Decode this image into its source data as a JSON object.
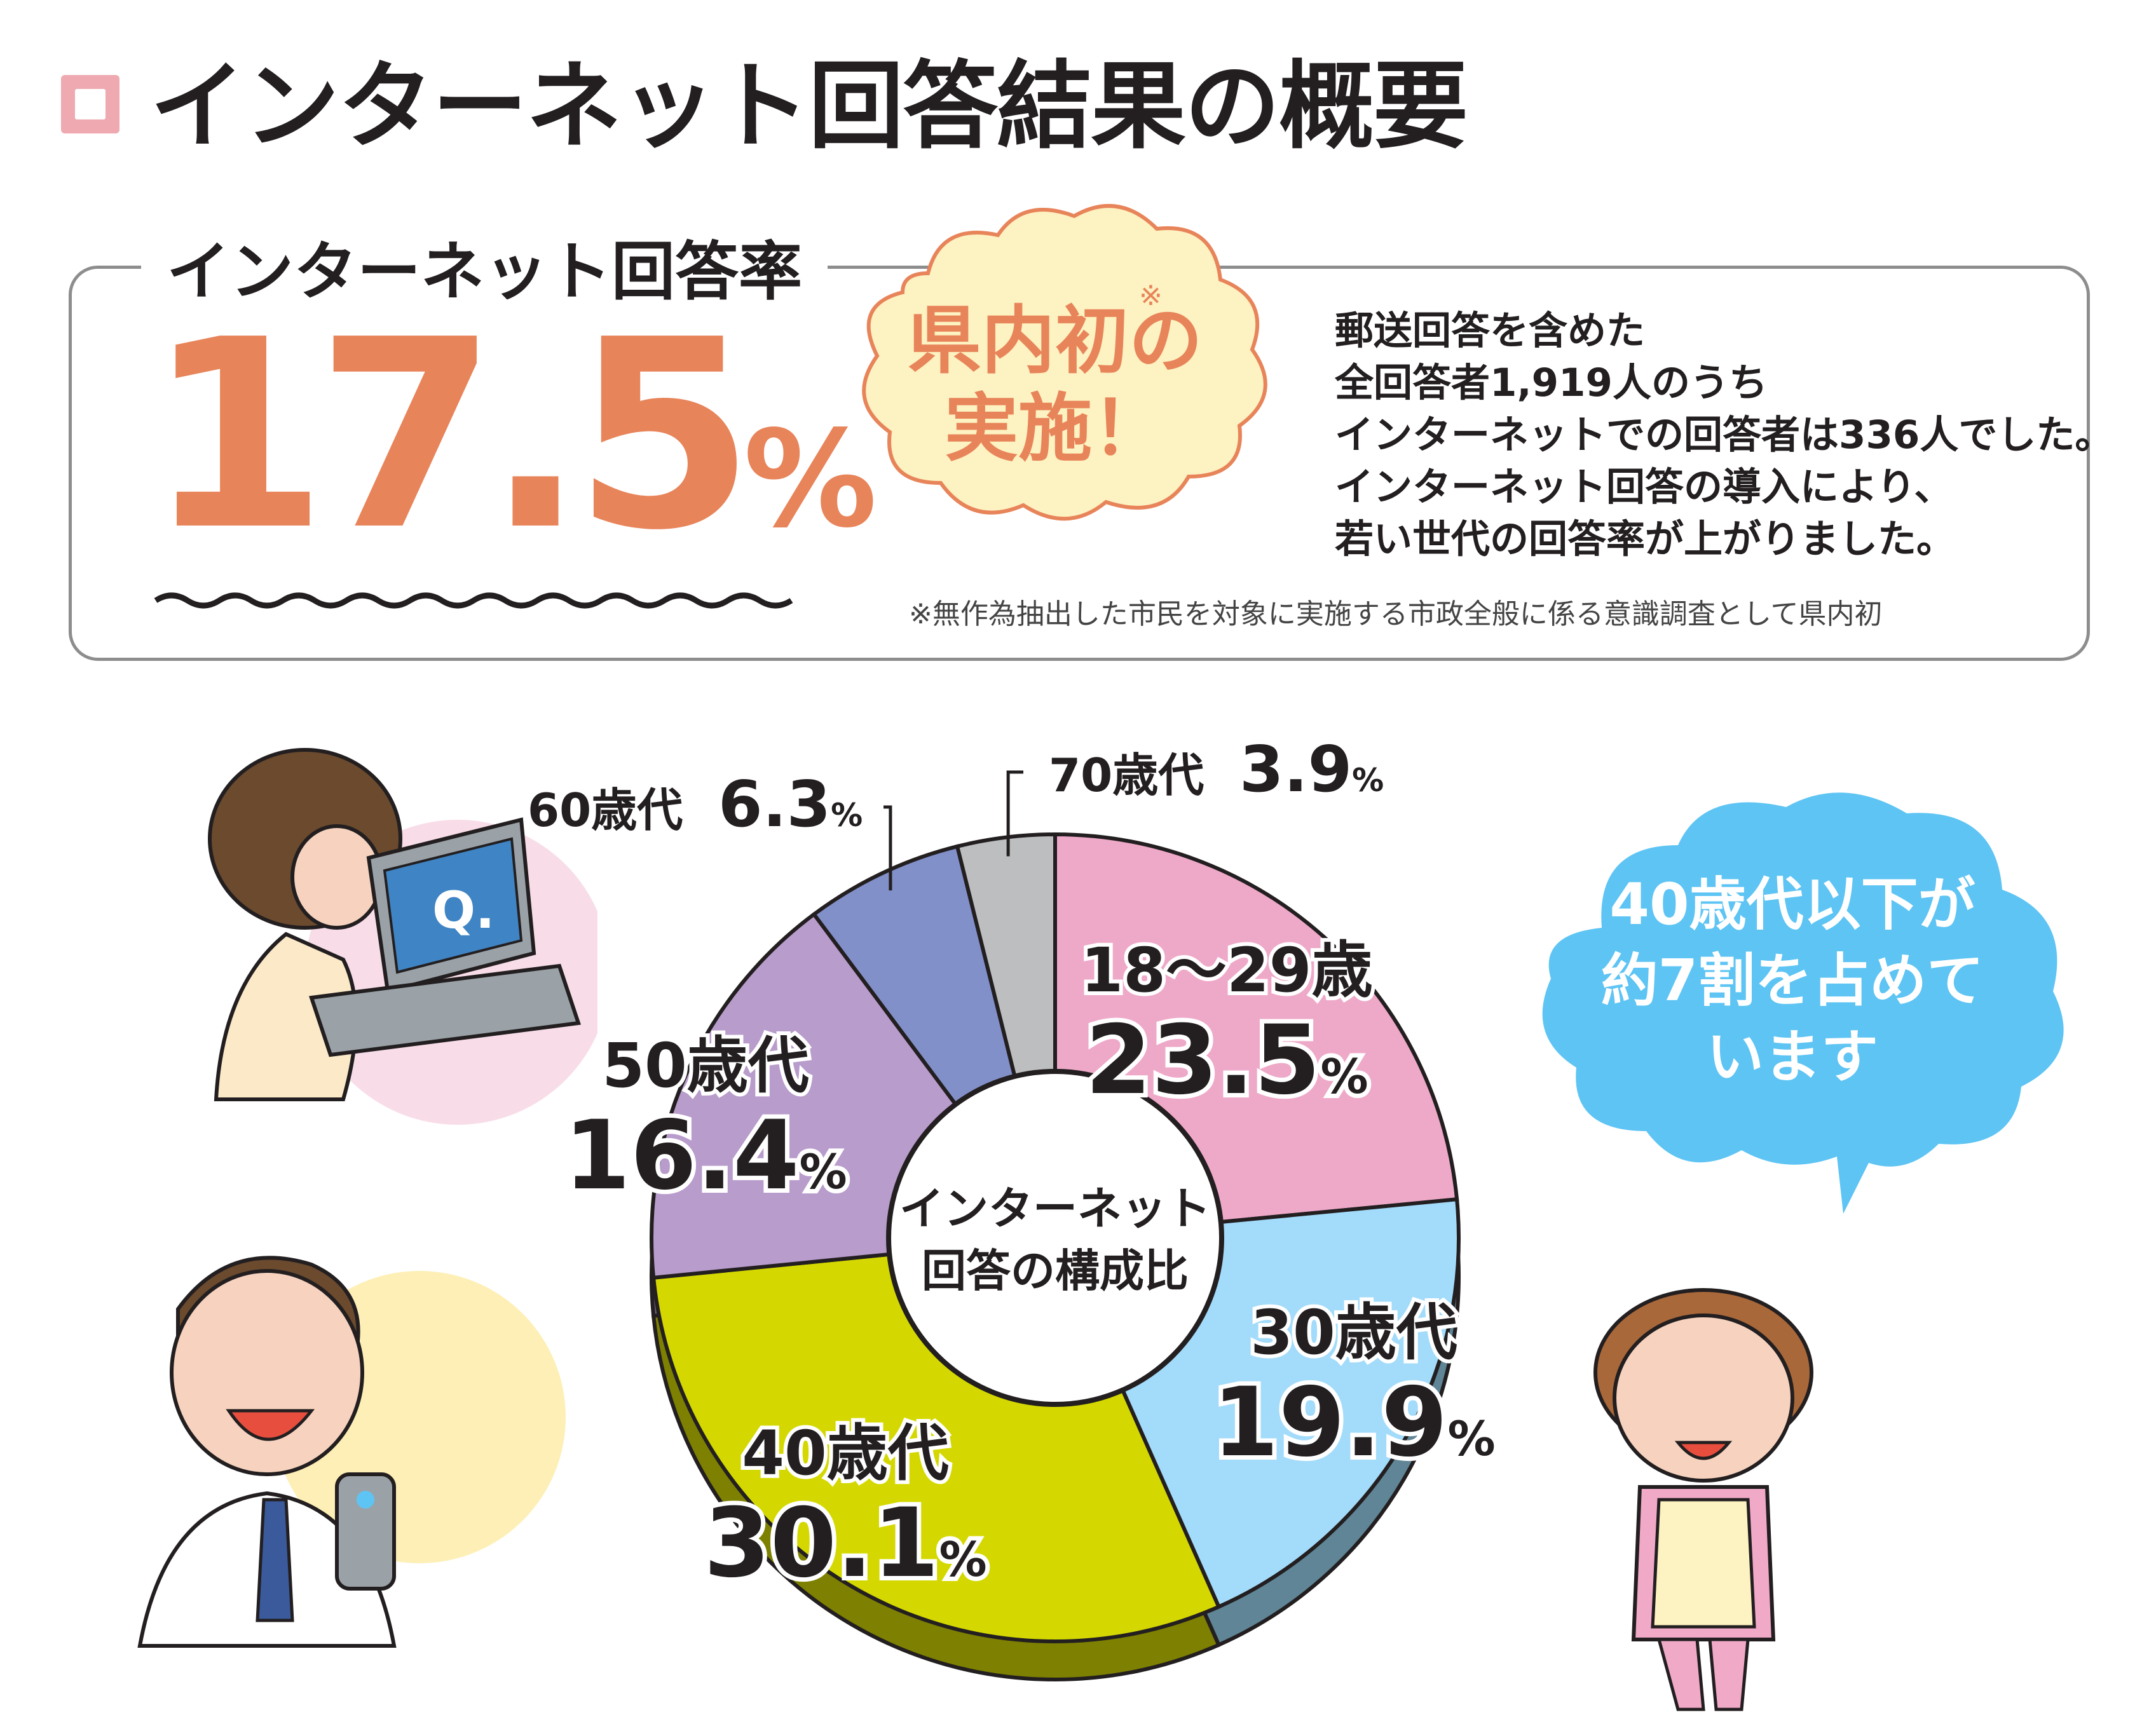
{
  "header": {
    "title": "インターネット回答結果の概要"
  },
  "rate": {
    "label": "インターネット回答率",
    "value": "17.5",
    "unit": "%",
    "badge_line1": "県内初の",
    "badge_line2": "実施！",
    "badge_mark": "※",
    "description": [
      "郵送回答を含めた",
      "全回答者1,919人のうち",
      "インターネットでの回答者は336人でした。",
      "インターネット回答の導入により、",
      "若い世代の回答率が上がりました。"
    ],
    "footnote": "※無作為抽出した市民を対象に実施する市政全般に係る意識調査として県内初"
  },
  "chart_data": {
    "type": "pie",
    "title": "インターネット回答の構成比",
    "center_label_line1": "インターネット",
    "center_label_line2": "回答の構成比",
    "slices": [
      {
        "label": "18～29歳",
        "value": 23.5,
        "value_text": "23.5",
        "color": "#eea9c9",
        "side_color": "#8c5a72"
      },
      {
        "label": "30歳代",
        "value": 19.9,
        "value_text": "19.9",
        "color": "#a3dbfa",
        "side_color": "#5f8596"
      },
      {
        "label": "40歳代",
        "value": 30.1,
        "value_text": "30.1",
        "color": "#d4d800",
        "side_color": "#7d8000"
      },
      {
        "label": "50歳代",
        "value": 16.4,
        "value_text": "16.4",
        "color": "#b89ccc",
        "side_color": "#6e5d7a"
      },
      {
        "label": "60歳代",
        "value": 6.3,
        "value_text": "6.3",
        "color": "#8290c9",
        "side_color": "#4d5678"
      },
      {
        "label": "70歳代",
        "value": 3.9,
        "value_text": "3.9",
        "color": "#bdbec0",
        "side_color": "#717273"
      }
    ],
    "unit": "%"
  },
  "speech": {
    "lines": [
      "40歳代以下が",
      "約7割を占めて",
      "います"
    ],
    "color": "#5ec4f4"
  },
  "illustrations": {
    "laptop_screen_text": "Q.",
    "icons": [
      "woman-laptop-illustration",
      "man-smartphone-illustration",
      "woman-apron-illustration"
    ]
  }
}
